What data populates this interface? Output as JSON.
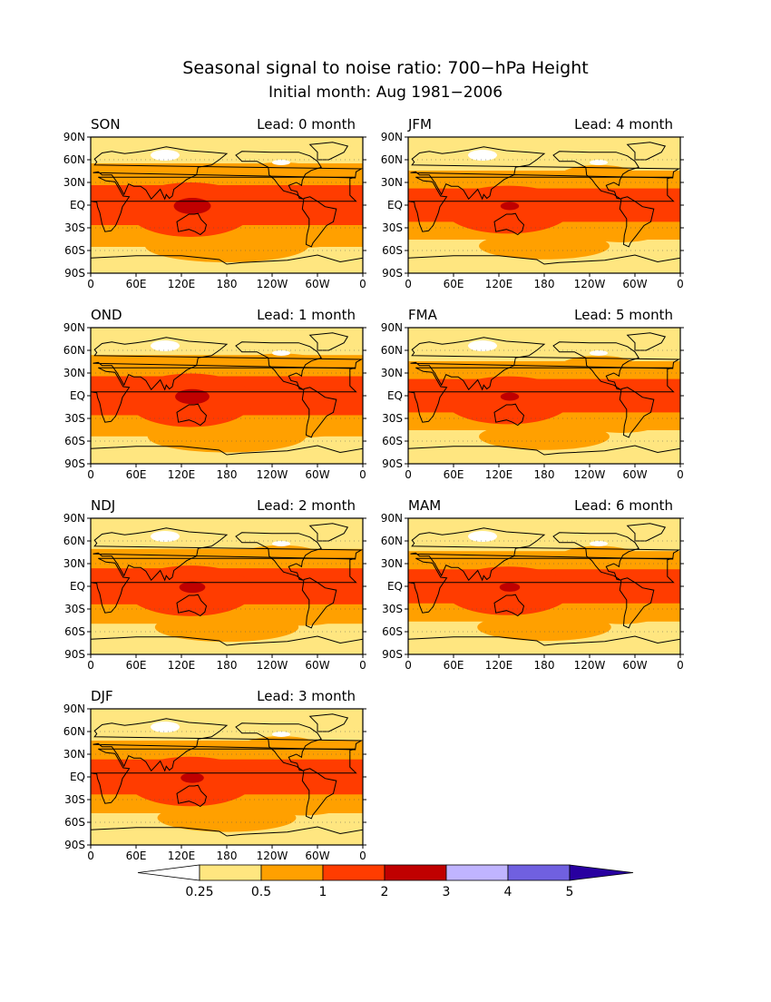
{
  "title": "Seasonal signal to noise ratio: 700−hPa Height",
  "subtitle": "Initial month: Aug 1981−2006",
  "lat_ticks": [
    "90N",
    "60N",
    "30N",
    "EQ",
    "30S",
    "60S",
    "90S"
  ],
  "lon_ticks": [
    "0",
    "60E",
    "120E",
    "180",
    "120W",
    "60W",
    "0"
  ],
  "panels": [
    {
      "season": "SON",
      "lead": "Lead: 0 month",
      "intensity": 1.0
    },
    {
      "season": "JFM",
      "lead": "Lead: 4 month",
      "intensity": 0.8
    },
    {
      "season": "OND",
      "lead": "Lead: 1 month",
      "intensity": 0.97
    },
    {
      "season": "FMA",
      "lead": "Lead: 5 month",
      "intensity": 0.8
    },
    {
      "season": "NDJ",
      "lead": "Lead: 2 month",
      "intensity": 0.88
    },
    {
      "season": "MAM",
      "lead": "Lead: 6 month",
      "intensity": 0.82
    },
    {
      "season": "DJF",
      "lead": "Lead: 3 month",
      "intensity": 0.85
    }
  ],
  "colorbar": {
    "labels": [
      "0.25",
      "0.5",
      "1",
      "2",
      "3",
      "4",
      "5"
    ],
    "colors": [
      "#ffffff",
      "#ffe680",
      "#ffa000",
      "#ff3c00",
      "#c00000",
      "#c0b4ff",
      "#7060e0",
      "#2800a0"
    ]
  }
}
